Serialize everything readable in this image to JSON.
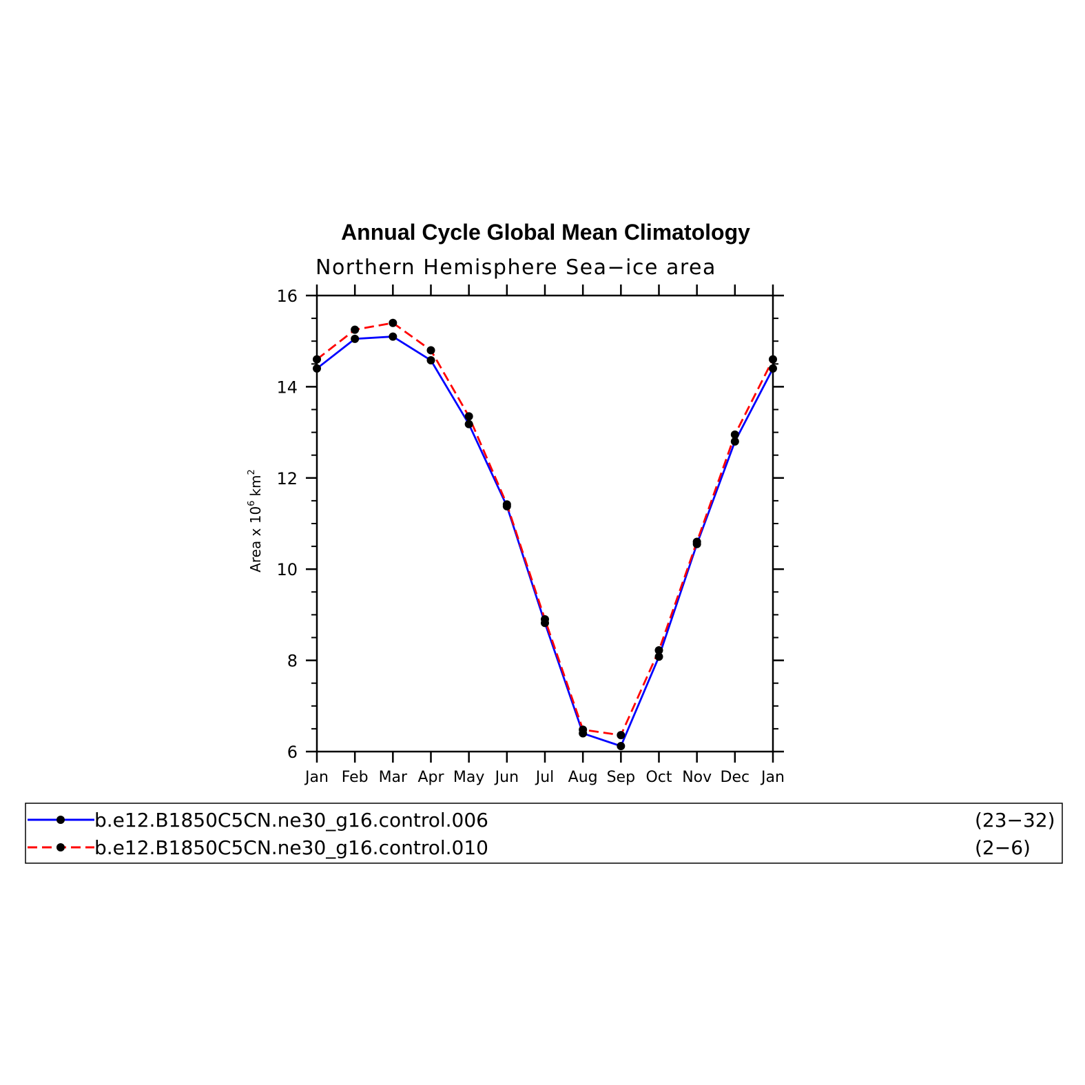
{
  "chart_data": {
    "type": "line",
    "title": "Annual Cycle Global Mean Climatology",
    "subtitle": "Northern Hemisphere Sea−ice area",
    "ylabel": "Area x 10",
    "ylabel_exp1": "6",
    "ylabel_unit": "km",
    "ylabel_exp2": "2",
    "xlabel": "",
    "categories": [
      "Jan",
      "Feb",
      "Mar",
      "Apr",
      "May",
      "Jun",
      "Jul",
      "Aug",
      "Sep",
      "Oct",
      "Nov",
      "Dec",
      "Jan"
    ],
    "ylim": [
      6,
      16
    ],
    "yticks": [
      6,
      8,
      10,
      12,
      14,
      16
    ],
    "series": [
      {
        "name": "b.e12.B1850C5CN.ne30_g16.control.006",
        "years": "(23−32)",
        "color": "#0000ff",
        "dash": "solid",
        "values": [
          14.4,
          15.05,
          15.1,
          14.58,
          13.18,
          11.38,
          8.82,
          6.4,
          6.12,
          8.08,
          10.55,
          12.8,
          14.4
        ]
      },
      {
        "name": "b.e12.B1850C5CN.ne30_g16.control.010",
        "years": "(2−6)",
        "color": "#ff0000",
        "dash": "dashed",
        "values": [
          14.6,
          15.25,
          15.4,
          14.8,
          13.35,
          11.42,
          8.9,
          6.48,
          6.36,
          8.22,
          10.6,
          12.95,
          14.6
        ]
      }
    ],
    "marker_color": "#000000"
  }
}
